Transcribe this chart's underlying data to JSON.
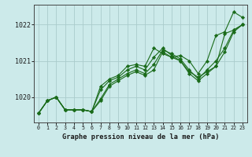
{
  "xlabel": "Graphe pression niveau de la mer (hPa)",
  "background_color": "#cceaea",
  "grid_color": "#aacccc",
  "line_color": "#1a6b1a",
  "marker_color": "#1a6b1a",
  "xlim": [
    -0.5,
    23.5
  ],
  "ylim": [
    1019.3,
    1022.55
  ],
  "yticks": [
    1020,
    1021,
    1022
  ],
  "xticks": [
    0,
    1,
    2,
    3,
    4,
    5,
    6,
    7,
    8,
    9,
    10,
    11,
    12,
    13,
    14,
    15,
    16,
    17,
    18,
    19,
    20,
    21,
    22,
    23
  ],
  "series": [
    [
      1019.55,
      1019.9,
      1020.0,
      1019.65,
      1019.65,
      1019.65,
      1019.6,
      1020.3,
      1020.5,
      1020.6,
      1020.85,
      1020.9,
      1020.85,
      1021.35,
      1021.2,
      1021.1,
      1021.15,
      1021.0,
      1020.65,
      1021.0,
      1021.7,
      1021.8,
      1022.35,
      1022.2
    ],
    [
      1019.55,
      1019.9,
      1020.0,
      1019.65,
      1019.65,
      1019.65,
      1019.6,
      1020.2,
      1020.45,
      1020.55,
      1020.75,
      1020.85,
      1020.75,
      1021.1,
      1021.35,
      1021.15,
      1021.0,
      1020.7,
      1020.55,
      1020.7,
      1020.85,
      1021.75,
      1021.85,
      1022.0
    ],
    [
      1019.55,
      1019.9,
      1020.0,
      1019.65,
      1019.65,
      1019.65,
      1019.6,
      1019.95,
      1020.35,
      1020.5,
      1020.65,
      1020.75,
      1020.65,
      1020.9,
      1021.3,
      1021.2,
      1021.05,
      1020.75,
      1020.5,
      1020.75,
      1021.0,
      1021.35,
      1021.85,
      1022.0
    ],
    [
      1019.55,
      1019.9,
      1020.0,
      1019.65,
      1019.65,
      1019.65,
      1019.6,
      1019.9,
      1020.3,
      1020.45,
      1020.6,
      1020.7,
      1020.6,
      1020.75,
      1021.25,
      1021.1,
      1021.0,
      1020.65,
      1020.45,
      1020.65,
      1020.85,
      1021.25,
      1021.8,
      1022.0
    ]
  ]
}
